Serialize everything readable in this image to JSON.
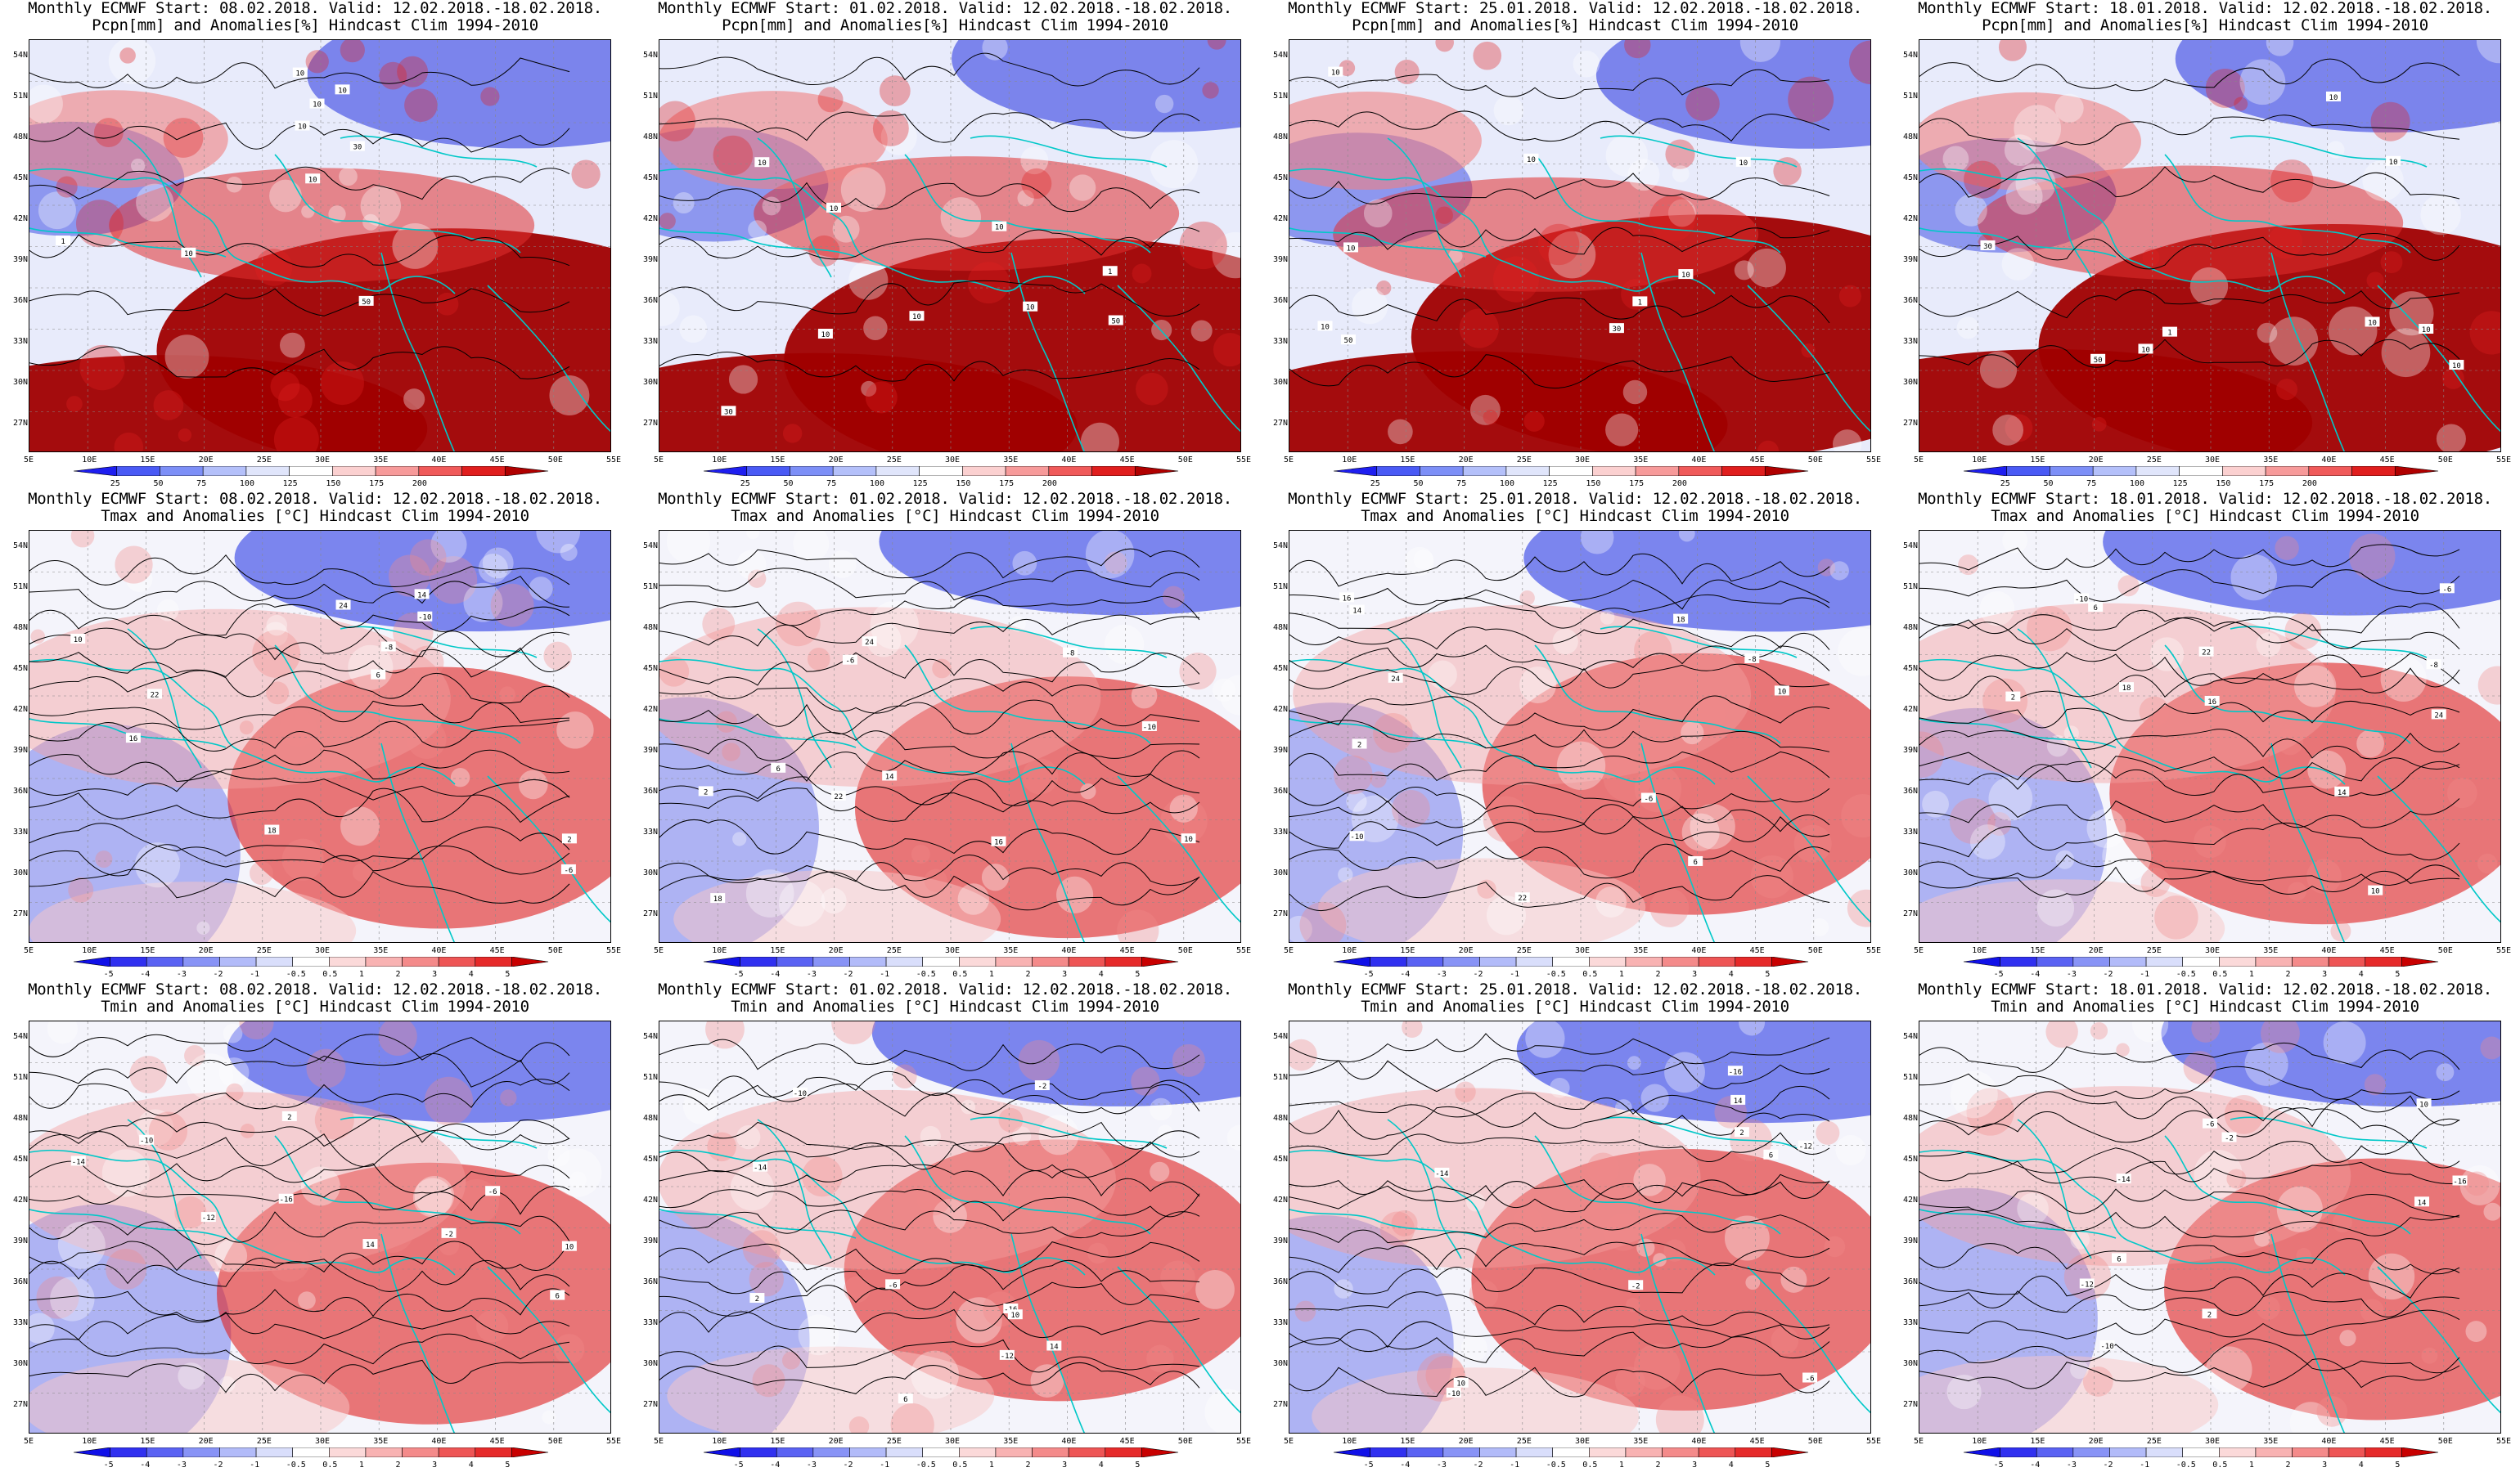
{
  "panels": [
    {
      "title": "Monthly ECMWF Start: 08.02.2018. Valid: 12.02.2018.-18.02.2018.",
      "subtitle": "Pcpn[mm] and Anomalies[%] Hindcast Clim 1994-2010",
      "var": "pcpn"
    },
    {
      "title": "Monthly ECMWF Start: 01.02.2018. Valid: 12.02.2018.-18.02.2018.",
      "subtitle": "Pcpn[mm] and Anomalies[%] Hindcast Clim 1994-2010",
      "var": "pcpn"
    },
    {
      "title": "Monthly ECMWF Start: 25.01.2018. Valid: 12.02.2018.-18.02.2018.",
      "subtitle": "Pcpn[mm] and Anomalies[%] Hindcast Clim 1994-2010",
      "var": "pcpn"
    },
    {
      "title": "Monthly ECMWF Start: 18.01.2018. Valid: 12.02.2018.-18.02.2018.",
      "subtitle": "Pcpn[mm] and Anomalies[%] Hindcast Clim 1994-2010",
      "var": "pcpn"
    },
    {
      "title": "Monthly ECMWF Start: 08.02.2018. Valid: 12.02.2018.-18.02.2018.",
      "subtitle": "Tmax and Anomalies [°C] Hindcast Clim 1994-2010",
      "var": "tmax"
    },
    {
      "title": "Monthly ECMWF Start: 01.02.2018. Valid: 12.02.2018.-18.02.2018.",
      "subtitle": "Tmax and Anomalies [°C] Hindcast Clim 1994-2010",
      "var": "tmax"
    },
    {
      "title": "Monthly ECMWF Start: 25.01.2018. Valid: 12.02.2018.-18.02.2018.",
      "subtitle": "Tmax and Anomalies [°C] Hindcast Clim 1994-2010",
      "var": "tmax"
    },
    {
      "title": "Monthly ECMWF Start: 18.01.2018. Valid: 12.02.2018.-18.02.2018.",
      "subtitle": "Tmax and Anomalies [°C] Hindcast Clim 1994-2010",
      "var": "tmax"
    },
    {
      "title": "Monthly ECMWF Start: 08.02.2018. Valid: 12.02.2018.-18.02.2018.",
      "subtitle": "Tmin and Anomalies [°C] Hindcast Clim 1994-2010",
      "var": "tmin"
    },
    {
      "title": "Monthly ECMWF Start: 01.02.2018. Valid: 12.02.2018.-18.02.2018.",
      "subtitle": "Tmin and Anomalies [°C] Hindcast Clim 1994-2010",
      "var": "tmin"
    },
    {
      "title": "Monthly ECMWF Start: 25.01.2018. Valid: 12.02.2018.-18.02.2018.",
      "subtitle": "Tmin and Anomalies [°C] Hindcast Clim 1994-2010",
      "var": "tmin"
    },
    {
      "title": "Monthly ECMWF Start: 18.01.2018. Valid: 12.02.2018.-18.02.2018.",
      "subtitle": "Tmin and Anomalies [°C] Hindcast Clim 1994-2010",
      "var": "tmin"
    }
  ],
  "lat_labels": [
    "54N",
    "51N",
    "48N",
    "45N",
    "42N",
    "39N",
    "36N",
    "33N",
    "30N",
    "27N"
  ],
  "lon_labels": [
    "5E",
    "10E",
    "15E",
    "20E",
    "25E",
    "30E",
    "35E",
    "40E",
    "45E",
    "50E",
    "55E"
  ],
  "colorbars": {
    "pcpn": {
      "labels": [
        "25",
        "50",
        "75",
        "100",
        "125",
        "150",
        "175",
        "200"
      ],
      "colors": [
        "#1e1ef0",
        "#4a5af5",
        "#7d8ff7",
        "#b4c0fa",
        "#e0e5fb",
        "#ffffff",
        "#fbd0d0",
        "#f79a9a",
        "#f05a5a",
        "#e01e1e",
        "#b00000"
      ]
    },
    "temp": {
      "labels": [
        "-5",
        "-4",
        "-3",
        "-2",
        "-1",
        "-0.5",
        "0.5",
        "1",
        "2",
        "3",
        "4",
        "5"
      ],
      "colors": [
        "#1010e8",
        "#3030f0",
        "#5a62f3",
        "#8893f6",
        "#b2bbf9",
        "#d9defb",
        "#ffffff",
        "#fbd9d9",
        "#f8b2b2",
        "#f48a8a",
        "#ee5555",
        "#e62a2a",
        "#c80000"
      ]
    }
  },
  "map_colors": {
    "pcpn": {
      "dry": "#a00000",
      "wet": "#2030e0",
      "mid": "#e8ebfb"
    },
    "tmax": {
      "cold": "#2a3ae6",
      "warm": "#e02020",
      "mid": "#f4f4fb"
    },
    "tmin": {
      "cold": "#2a3ae6",
      "warm": "#e02020",
      "mid": "#f4f4fb"
    },
    "coast": "#00c8c8",
    "contour": "#000000"
  },
  "contour_labels": {
    "pcpn": [
      "10",
      "10",
      "10",
      "10",
      "30",
      "50",
      "10",
      "1",
      "10"
    ],
    "tmax": [
      "-10",
      "-8",
      "-6",
      "2",
      "6",
      "10",
      "14",
      "16",
      "18",
      "22",
      "24"
    ],
    "tmin": [
      "-16",
      "-14",
      "-12",
      "-10",
      "-6",
      "-2",
      "2",
      "6",
      "10",
      "14"
    ]
  }
}
